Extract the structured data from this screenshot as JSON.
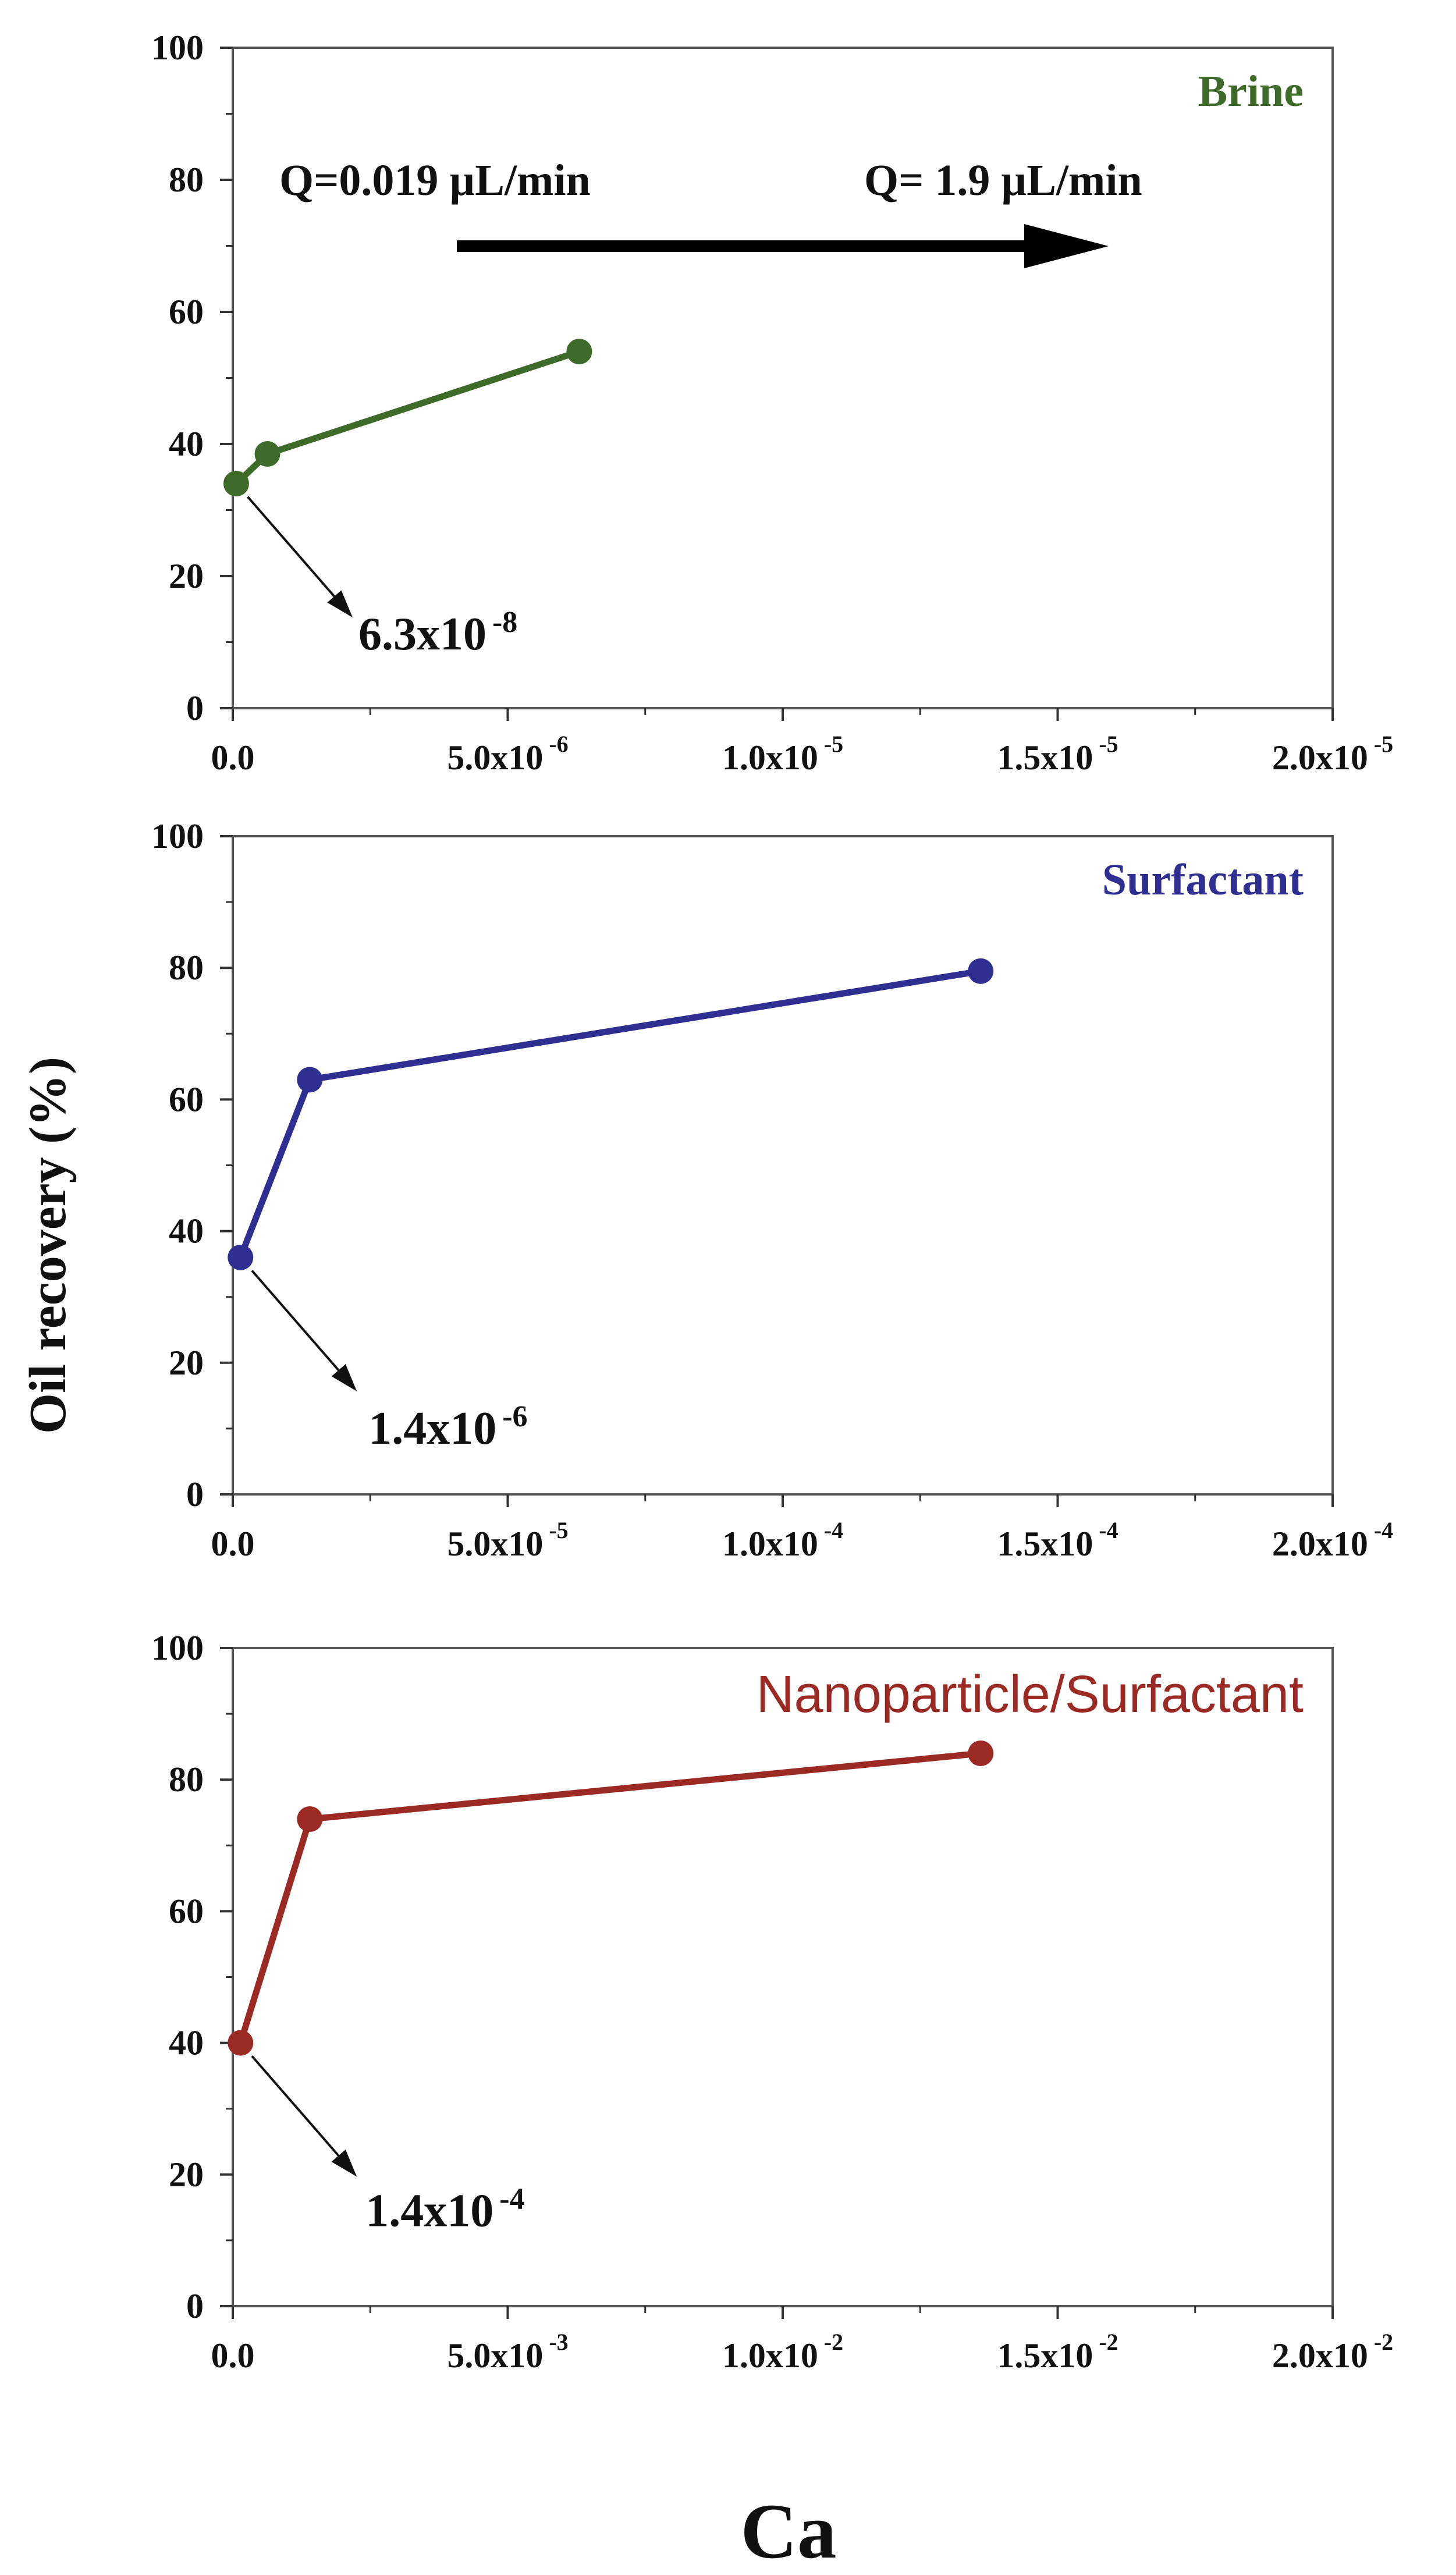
{
  "chart_data": [
    {
      "type": "line",
      "title": "Brine",
      "color": "#3f6b2a",
      "xlim": [
        0,
        2e-05
      ],
      "ylim": [
        0,
        100
      ],
      "x_ticks": [
        {
          "mant": "0.0",
          "exp": ""
        },
        {
          "mant": "5.0x10",
          "exp": "-6"
        },
        {
          "mant": "1.0x10",
          "exp": "-5"
        },
        {
          "mant": "1.5x10",
          "exp": "-5"
        },
        {
          "mant": "2.0x10",
          "exp": "-5"
        }
      ],
      "y_ticks": [
        "0",
        "20",
        "40",
        "60",
        "80",
        "100"
      ],
      "series": [
        {
          "x": [
            6.3e-08,
            6.3e-07,
            6.3e-06
          ],
          "y": [
            34,
            38.5,
            54
          ]
        }
      ],
      "annotation": {
        "mant": "6.3x10",
        "exp": "-8"
      },
      "flow_left": "Q=0.019 µL/min",
      "flow_right": "Q= 1.9 µL/min"
    },
    {
      "type": "line",
      "title": "Surfactant",
      "color": "#2f2f92",
      "xlim": [
        0,
        0.0002
      ],
      "ylim": [
        0,
        100
      ],
      "x_ticks": [
        {
          "mant": "0.0",
          "exp": ""
        },
        {
          "mant": "5.0x10",
          "exp": "-5"
        },
        {
          "mant": "1.0x10",
          "exp": "-4"
        },
        {
          "mant": "1.5x10",
          "exp": "-4"
        },
        {
          "mant": "2.0x10",
          "exp": "-4"
        }
      ],
      "y_ticks": [
        "0",
        "20",
        "40",
        "60",
        "80",
        "100"
      ],
      "series": [
        {
          "x": [
            1.4e-06,
            1.4e-05,
            0.000136
          ],
          "y": [
            36,
            63,
            79.5
          ]
        }
      ],
      "annotation": {
        "mant": "1.4x10",
        "exp": "-6"
      }
    },
    {
      "type": "line",
      "title": "Nanoparticle/Surfactant",
      "color": "#9b2a25",
      "xlim": [
        0,
        0.02
      ],
      "ylim": [
        0,
        100
      ],
      "x_ticks": [
        {
          "mant": "0.0",
          "exp": ""
        },
        {
          "mant": "5.0x10",
          "exp": "-3"
        },
        {
          "mant": "1.0x10",
          "exp": "-2"
        },
        {
          "mant": "1.5x10",
          "exp": "-2"
        },
        {
          "mant": "2.0x10",
          "exp": "-2"
        }
      ],
      "y_ticks": [
        "0",
        "20",
        "40",
        "60",
        "80",
        "100"
      ],
      "series": [
        {
          "x": [
            0.00014,
            0.0014,
            0.0136
          ],
          "y": [
            40,
            74,
            84
          ]
        }
      ],
      "annotation": {
        "mant": "1.4x10",
        "exp": "-4"
      }
    }
  ],
  "ylabel": "Oil recovery (%)",
  "xlabel": "Ca"
}
